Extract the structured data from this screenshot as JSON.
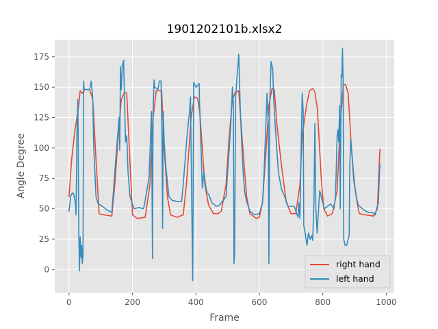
{
  "chart_data": {
    "type": "line",
    "title": "1901202101b.xlsx2",
    "xlabel": "Frame",
    "ylabel": "Angle Degree",
    "xlim": [
      -45,
      1025
    ],
    "ylim": [
      -19,
      189
    ],
    "xticks": [
      0,
      200,
      400,
      600,
      800,
      1000
    ],
    "yticks": [
      0,
      25,
      50,
      75,
      100,
      125,
      150,
      175
    ],
    "grid": true,
    "legend_position": "lower-right",
    "background": "#e5e5e5",
    "series": [
      {
        "name": "right hand",
        "color": "#e24a33",
        "points": [
          [
            0,
            60
          ],
          [
            8,
            90
          ],
          [
            18,
            113
          ],
          [
            30,
            134
          ],
          [
            35,
            147
          ],
          [
            42,
            145
          ],
          [
            50,
            148
          ],
          [
            65,
            148
          ],
          [
            75,
            140
          ],
          [
            85,
            90
          ],
          [
            95,
            46
          ],
          [
            110,
            45
          ],
          [
            135,
            44
          ],
          [
            145,
            72
          ],
          [
            155,
            110
          ],
          [
            165,
            140
          ],
          [
            175,
            146
          ],
          [
            182,
            145
          ],
          [
            190,
            100
          ],
          [
            200,
            45
          ],
          [
            215,
            42
          ],
          [
            240,
            43
          ],
          [
            255,
            70
          ],
          [
            265,
            125
          ],
          [
            275,
            147
          ],
          [
            292,
            147
          ],
          [
            300,
            100
          ],
          [
            310,
            60
          ],
          [
            320,
            45
          ],
          [
            340,
            43
          ],
          [
            360,
            45
          ],
          [
            370,
            70
          ],
          [
            385,
            125
          ],
          [
            395,
            142
          ],
          [
            405,
            141
          ],
          [
            412,
            130
          ],
          [
            420,
            100
          ],
          [
            428,
            70
          ],
          [
            440,
            53
          ],
          [
            455,
            46
          ],
          [
            470,
            46
          ],
          [
            480,
            48
          ],
          [
            495,
            70
          ],
          [
            505,
            110
          ],
          [
            515,
            140
          ],
          [
            525,
            146
          ],
          [
            535,
            147
          ],
          [
            545,
            110
          ],
          [
            560,
            60
          ],
          [
            570,
            46
          ],
          [
            590,
            42
          ],
          [
            600,
            43
          ],
          [
            610,
            55
          ],
          [
            620,
            95
          ],
          [
            630,
            135
          ],
          [
            640,
            149
          ],
          [
            647,
            148
          ],
          [
            655,
            120
          ],
          [
            670,
            85
          ],
          [
            685,
            55
          ],
          [
            700,
            46
          ],
          [
            715,
            46
          ],
          [
            728,
            70
          ],
          [
            735,
            110
          ],
          [
            748,
            134
          ],
          [
            758,
            147
          ],
          [
            768,
            149
          ],
          [
            775,
            146
          ],
          [
            783,
            132
          ],
          [
            795,
            75
          ],
          [
            803,
            50
          ],
          [
            815,
            44
          ],
          [
            830,
            46
          ],
          [
            845,
            65
          ],
          [
            855,
            120
          ],
          [
            865,
            152
          ],
          [
            872,
            152
          ],
          [
            880,
            145
          ],
          [
            890,
            100
          ],
          [
            900,
            70
          ],
          [
            908,
            55
          ],
          [
            915,
            46
          ],
          [
            935,
            45
          ],
          [
            960,
            44
          ],
          [
            972,
            50
          ],
          [
            980,
            99
          ]
        ]
      },
      {
        "name": "left hand",
        "color": "#348abd",
        "points": [
          [
            0,
            48
          ],
          [
            5,
            60
          ],
          [
            10,
            63
          ],
          [
            15,
            62
          ],
          [
            20,
            55
          ],
          [
            22,
            45
          ],
          [
            25,
            110
          ],
          [
            28,
            140
          ],
          [
            31,
            26
          ],
          [
            33,
            -1
          ],
          [
            35,
            27
          ],
          [
            38,
            10
          ],
          [
            40,
            20
          ],
          [
            42,
            5
          ],
          [
            44,
            12
          ],
          [
            46,
            155
          ],
          [
            48,
            148
          ],
          [
            55,
            148
          ],
          [
            65,
            148
          ],
          [
            70,
            155
          ],
          [
            75,
            140
          ],
          [
            78,
            100
          ],
          [
            85,
            60
          ],
          [
            92,
            54
          ],
          [
            105,
            52
          ],
          [
            120,
            49
          ],
          [
            135,
            47
          ],
          [
            140,
            65
          ],
          [
            150,
            100
          ],
          [
            158,
            125
          ],
          [
            160,
            98
          ],
          [
            162,
            167
          ],
          [
            165,
            148
          ],
          [
            168,
            168
          ],
          [
            172,
            172
          ],
          [
            175,
            140
          ],
          [
            178,
            105
          ],
          [
            182,
            110
          ],
          [
            186,
            80
          ],
          [
            192,
            60
          ],
          [
            205,
            50
          ],
          [
            220,
            51
          ],
          [
            235,
            50
          ],
          [
            242,
            60
          ],
          [
            252,
            75
          ],
          [
            260,
            130
          ],
          [
            263,
            9
          ],
          [
            265,
            130
          ],
          [
            268,
            156
          ],
          [
            270,
            150
          ],
          [
            280,
            148
          ],
          [
            285,
            155
          ],
          [
            290,
            155
          ],
          [
            293,
            110
          ],
          [
            295,
            34
          ],
          [
            297,
            130
          ],
          [
            300,
            105
          ],
          [
            305,
            85
          ],
          [
            315,
            60
          ],
          [
            325,
            57
          ],
          [
            340,
            56
          ],
          [
            355,
            56
          ],
          [
            360,
            70
          ],
          [
            372,
            110
          ],
          [
            380,
            130
          ],
          [
            383,
            142
          ],
          [
            386,
            70
          ],
          [
            390,
            -9
          ],
          [
            393,
            154
          ],
          [
            400,
            150
          ],
          [
            410,
            153
          ],
          [
            412,
            133
          ],
          [
            415,
            110
          ],
          [
            420,
            67
          ],
          [
            425,
            80
          ],
          [
            430,
            70
          ],
          [
            435,
            63
          ],
          [
            440,
            62
          ],
          [
            450,
            55
          ],
          [
            465,
            52
          ],
          [
            475,
            53
          ],
          [
            480,
            55
          ],
          [
            495,
            60
          ],
          [
            500,
            80
          ],
          [
            505,
            100
          ],
          [
            510,
            120
          ],
          [
            515,
            150
          ],
          [
            518,
            135
          ],
          [
            520,
            5
          ],
          [
            522,
            12
          ],
          [
            525,
            140
          ],
          [
            530,
            160
          ],
          [
            535,
            177
          ],
          [
            540,
            130
          ],
          [
            545,
            100
          ],
          [
            550,
            75
          ],
          [
            555,
            62
          ],
          [
            560,
            56
          ],
          [
            570,
            48
          ],
          [
            585,
            45
          ],
          [
            600,
            46
          ],
          [
            610,
            55
          ],
          [
            615,
            80
          ],
          [
            622,
            130
          ],
          [
            624,
            145
          ],
          [
            628,
            120
          ],
          [
            630,
            5
          ],
          [
            633,
            140
          ],
          [
            637,
            171
          ],
          [
            642,
            165
          ],
          [
            645,
            140
          ],
          [
            652,
            110
          ],
          [
            660,
            80
          ],
          [
            670,
            66
          ],
          [
            680,
            60
          ],
          [
            690,
            52
          ],
          [
            700,
            52
          ],
          [
            710,
            52
          ],
          [
            715,
            48
          ],
          [
            722,
            43
          ],
          [
            725,
            55
          ],
          [
            728,
            42
          ],
          [
            731,
            90
          ],
          [
            735,
            145
          ],
          [
            738,
            130
          ],
          [
            740,
            36
          ],
          [
            743,
            32
          ],
          [
            746,
            27
          ],
          [
            750,
            20
          ],
          [
            755,
            30
          ],
          [
            760,
            25
          ],
          [
            765,
            28
          ],
          [
            768,
            24
          ],
          [
            772,
            55
          ],
          [
            775,
            120
          ],
          [
            778,
            50
          ],
          [
            782,
            30
          ],
          [
            790,
            65
          ],
          [
            800,
            55
          ],
          [
            805,
            50
          ],
          [
            815,
            52
          ],
          [
            825,
            54
          ],
          [
            835,
            50
          ],
          [
            840,
            60
          ],
          [
            842,
            80
          ],
          [
            845,
            110
          ],
          [
            848,
            115
          ],
          [
            850,
            105
          ],
          [
            853,
            135
          ],
          [
            855,
            50
          ],
          [
            858,
            160
          ],
          [
            860,
            158
          ],
          [
            862,
            182
          ],
          [
            864,
            155
          ],
          [
            866,
            25
          ],
          [
            870,
            20
          ],
          [
            875,
            20
          ],
          [
            880,
            25
          ],
          [
            883,
            28
          ],
          [
            885,
            85
          ],
          [
            888,
            107
          ],
          [
            892,
            95
          ],
          [
            897,
            74
          ],
          [
            905,
            60
          ],
          [
            912,
            53
          ],
          [
            925,
            50
          ],
          [
            935,
            48
          ],
          [
            945,
            47
          ],
          [
            955,
            47
          ],
          [
            965,
            45
          ],
          [
            975,
            55
          ],
          [
            980,
            87
          ]
        ]
      }
    ]
  }
}
